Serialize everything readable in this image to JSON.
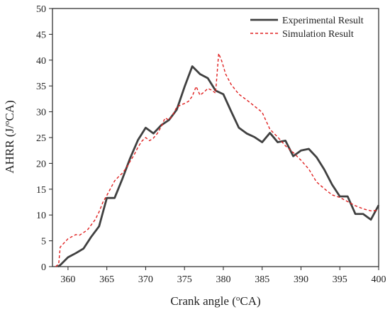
{
  "chart_data": {
    "type": "line",
    "xlabel_main": "Crank angle (",
    "xlabel_sup": "o",
    "xlabel_end": "CA)",
    "ylabel_main": "AHRR (J/",
    "ylabel_sup": "o",
    "ylabel_end": "CA)",
    "xlim": [
      358,
      400
    ],
    "ylim": [
      0,
      50
    ],
    "xticks": [
      360,
      365,
      370,
      375,
      380,
      385,
      390,
      395,
      400
    ],
    "yticks": [
      0,
      5,
      10,
      15,
      20,
      25,
      30,
      35,
      40,
      45,
      50
    ],
    "legend_position": "top-right",
    "series": [
      {
        "name": "Experimental Result",
        "color": "#404040",
        "style": "solid",
        "x": [
          358.7,
          359,
          360,
          361,
          362,
          363,
          364,
          365,
          366,
          367,
          368,
          369,
          370,
          371,
          372,
          373,
          374,
          375,
          376,
          377,
          378,
          379,
          380,
          381,
          382,
          383,
          384,
          385,
          386,
          387,
          388,
          389,
          390,
          391,
          392,
          393,
          394,
          395,
          396,
          397,
          398,
          399,
          400
        ],
        "y": [
          0,
          0.3,
          1.8,
          2.6,
          3.5,
          5.8,
          7.8,
          13.3,
          13.3,
          17,
          21,
          24.5,
          26.9,
          25.8,
          27.4,
          28.4,
          30.4,
          34.8,
          38.8,
          37.3,
          36.5,
          34.1,
          33.4,
          30.1,
          26.9,
          25.8,
          25.1,
          24.1,
          25.9,
          24.1,
          24.4,
          21.4,
          22.5,
          22.8,
          21.2,
          18.8,
          15.9,
          13.6,
          13.6,
          10.2,
          10.2,
          9.1,
          11.9
        ]
      },
      {
        "name": "Simulation Result",
        "color": "#e02020",
        "style": "dashed",
        "x": [
          358.4,
          358.8,
          359,
          359.5,
          360,
          360.5,
          361,
          361.5,
          362,
          362.5,
          363,
          363.5,
          364,
          364.5,
          365,
          365.5,
          366,
          366.5,
          367,
          367.5,
          368,
          368.5,
          369,
          369.5,
          370,
          370.5,
          371,
          371.5,
          372,
          372.5,
          373,
          373.5,
          374,
          374.5,
          375,
          375.5,
          376,
          376.5,
          377,
          377.5,
          378,
          378.5,
          379,
          379.4,
          379.8,
          380.3,
          381,
          382,
          383,
          384,
          385,
          386,
          387,
          388,
          389,
          390,
          391,
          392,
          393,
          394,
          395,
          396,
          397,
          398,
          399,
          400
        ],
        "y": [
          0,
          0.5,
          3.8,
          4.6,
          5.4,
          5.8,
          6.2,
          6.1,
          6.6,
          7.1,
          8.1,
          9.1,
          10.6,
          12.5,
          13.8,
          15.2,
          16.6,
          17.4,
          18.1,
          19.1,
          20.4,
          21.6,
          23.1,
          24.3,
          25,
          24.4,
          24.9,
          25.8,
          27.1,
          28.8,
          28.4,
          29.4,
          30.9,
          31.3,
          31.6,
          32,
          33,
          34.9,
          33.2,
          33.8,
          34.5,
          34.2,
          33.6,
          41.3,
          39.8,
          37.3,
          35.3,
          33.4,
          32.3,
          31.1,
          29.9,
          26.6,
          25.1,
          23.4,
          22.1,
          20.6,
          18.9,
          16.4,
          15.1,
          13.9,
          13.4,
          12.6,
          11.8,
          11.2,
          10.8,
          10.9
        ]
      }
    ]
  }
}
